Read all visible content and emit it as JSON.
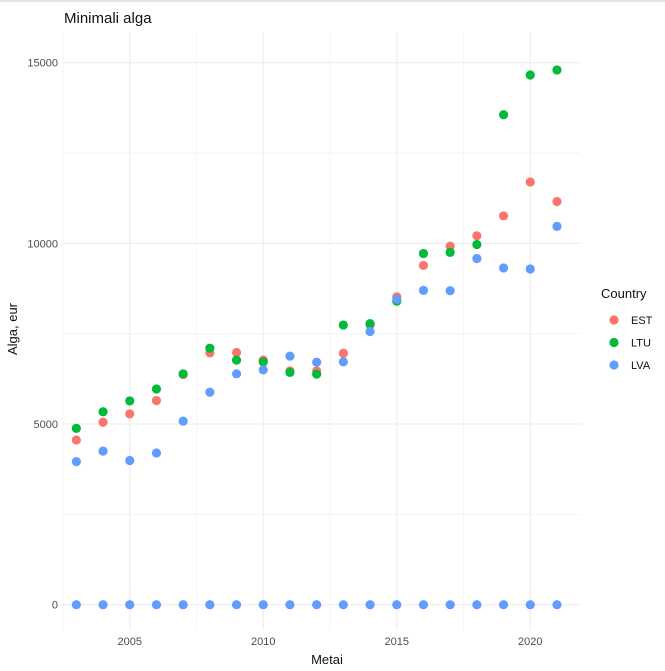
{
  "chart_data": {
    "type": "scatter",
    "title": "Minimali alga",
    "xlabel": "Metai",
    "ylabel": "Alga, eur",
    "xlim": [
      2002.5,
      2021.9
    ],
    "ylim": [
      -700,
      15850
    ],
    "x_ticks": [
      2005,
      2010,
      2015,
      2020
    ],
    "y_ticks": [
      0,
      5000,
      10000,
      15000
    ],
    "x_tick_labels": [
      "2005",
      "2010",
      "2015",
      "2020"
    ],
    "y_tick_labels": [
      "0",
      "5000",
      "10000",
      "15000"
    ],
    "grid": true,
    "legend": {
      "title": "Country",
      "position": "right"
    },
    "series": [
      {
        "name": "EST",
        "color": "#F8766D",
        "x": [
          2003,
          2004,
          2005,
          2006,
          2007,
          2008,
          2009,
          2010,
          2011,
          2012,
          2013,
          2014,
          2015,
          2016,
          2017,
          2018,
          2019,
          2020,
          2021
        ],
        "y": [
          4560,
          5050,
          5280,
          5650,
          6370,
          6970,
          6980,
          6770,
          6470,
          6470,
          6960,
          7740,
          8520,
          9390,
          9920,
          10210,
          10760,
          11700,
          11160
        ]
      },
      {
        "name": "LTU",
        "color": "#00BA38",
        "x": [
          2003,
          2004,
          2005,
          2006,
          2007,
          2008,
          2009,
          2010,
          2011,
          2012,
          2013,
          2014,
          2015,
          2016,
          2017,
          2018,
          2019,
          2020,
          2021
        ],
        "y": [
          4880,
          5340,
          5640,
          5970,
          6390,
          7100,
          6770,
          6720,
          6430,
          6380,
          7740,
          7780,
          8400,
          9720,
          9750,
          9970,
          13560,
          14660,
          14800
        ]
      },
      {
        "name": "LVA",
        "color": "#619CFF",
        "x": [
          2003,
          2004,
          2005,
          2006,
          2007,
          2008,
          2009,
          2010,
          2011,
          2012,
          2013,
          2014,
          2015,
          2016,
          2017,
          2018,
          2019,
          2020,
          2021
        ],
        "y": [
          3960,
          4250,
          3990,
          4200,
          5080,
          5880,
          6390,
          6500,
          6880,
          6710,
          6720,
          7560,
          8450,
          8700,
          8690,
          9580,
          9320,
          9290,
          10470
        ]
      },
      {
        "name": "LVA",
        "color": "#619CFF",
        "legend": false,
        "x": [
          2003,
          2004,
          2005,
          2006,
          2007,
          2008,
          2009,
          2010,
          2011,
          2012,
          2013,
          2014,
          2015,
          2016,
          2017,
          2018,
          2019,
          2020,
          2021
        ],
        "y": [
          0,
          0,
          0,
          0,
          0,
          0,
          0,
          0,
          0,
          0,
          0,
          0,
          0,
          0,
          0,
          0,
          0,
          0,
          0
        ]
      }
    ]
  }
}
